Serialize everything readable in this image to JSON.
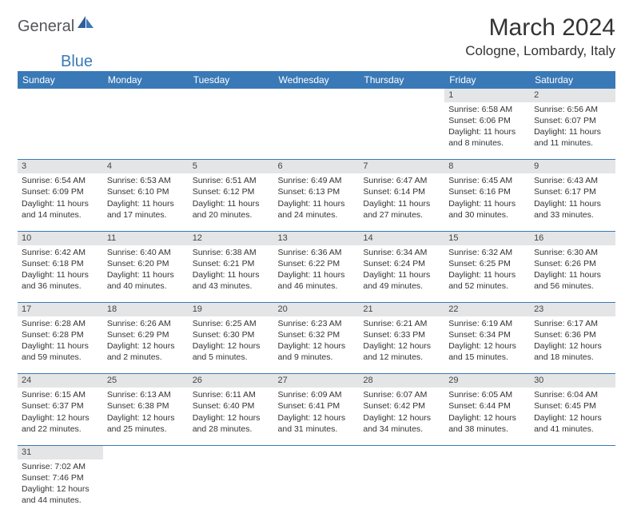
{
  "logo": {
    "general": "General",
    "blue": "Blue"
  },
  "title": "March 2024",
  "location": "Cologne, Lombardy, Italy",
  "colors": {
    "header_bg": "#3a79b7",
    "header_text": "#ffffff",
    "daynum_bg": "#e4e5e6",
    "row_border": "#3a79b7",
    "page_bg": "#ffffff",
    "text": "#333333"
  },
  "weekdays": [
    "Sunday",
    "Monday",
    "Tuesday",
    "Wednesday",
    "Thursday",
    "Friday",
    "Saturday"
  ],
  "weeks": [
    [
      null,
      null,
      null,
      null,
      null,
      {
        "n": "1",
        "sr": "Sunrise: 6:58 AM",
        "ss": "Sunset: 6:06 PM",
        "dl": "Daylight: 11 hours and 8 minutes."
      },
      {
        "n": "2",
        "sr": "Sunrise: 6:56 AM",
        "ss": "Sunset: 6:07 PM",
        "dl": "Daylight: 11 hours and 11 minutes."
      }
    ],
    [
      {
        "n": "3",
        "sr": "Sunrise: 6:54 AM",
        "ss": "Sunset: 6:09 PM",
        "dl": "Daylight: 11 hours and 14 minutes."
      },
      {
        "n": "4",
        "sr": "Sunrise: 6:53 AM",
        "ss": "Sunset: 6:10 PM",
        "dl": "Daylight: 11 hours and 17 minutes."
      },
      {
        "n": "5",
        "sr": "Sunrise: 6:51 AM",
        "ss": "Sunset: 6:12 PM",
        "dl": "Daylight: 11 hours and 20 minutes."
      },
      {
        "n": "6",
        "sr": "Sunrise: 6:49 AM",
        "ss": "Sunset: 6:13 PM",
        "dl": "Daylight: 11 hours and 24 minutes."
      },
      {
        "n": "7",
        "sr": "Sunrise: 6:47 AM",
        "ss": "Sunset: 6:14 PM",
        "dl": "Daylight: 11 hours and 27 minutes."
      },
      {
        "n": "8",
        "sr": "Sunrise: 6:45 AM",
        "ss": "Sunset: 6:16 PM",
        "dl": "Daylight: 11 hours and 30 minutes."
      },
      {
        "n": "9",
        "sr": "Sunrise: 6:43 AM",
        "ss": "Sunset: 6:17 PM",
        "dl": "Daylight: 11 hours and 33 minutes."
      }
    ],
    [
      {
        "n": "10",
        "sr": "Sunrise: 6:42 AM",
        "ss": "Sunset: 6:18 PM",
        "dl": "Daylight: 11 hours and 36 minutes."
      },
      {
        "n": "11",
        "sr": "Sunrise: 6:40 AM",
        "ss": "Sunset: 6:20 PM",
        "dl": "Daylight: 11 hours and 40 minutes."
      },
      {
        "n": "12",
        "sr": "Sunrise: 6:38 AM",
        "ss": "Sunset: 6:21 PM",
        "dl": "Daylight: 11 hours and 43 minutes."
      },
      {
        "n": "13",
        "sr": "Sunrise: 6:36 AM",
        "ss": "Sunset: 6:22 PM",
        "dl": "Daylight: 11 hours and 46 minutes."
      },
      {
        "n": "14",
        "sr": "Sunrise: 6:34 AM",
        "ss": "Sunset: 6:24 PM",
        "dl": "Daylight: 11 hours and 49 minutes."
      },
      {
        "n": "15",
        "sr": "Sunrise: 6:32 AM",
        "ss": "Sunset: 6:25 PM",
        "dl": "Daylight: 11 hours and 52 minutes."
      },
      {
        "n": "16",
        "sr": "Sunrise: 6:30 AM",
        "ss": "Sunset: 6:26 PM",
        "dl": "Daylight: 11 hours and 56 minutes."
      }
    ],
    [
      {
        "n": "17",
        "sr": "Sunrise: 6:28 AM",
        "ss": "Sunset: 6:28 PM",
        "dl": "Daylight: 11 hours and 59 minutes."
      },
      {
        "n": "18",
        "sr": "Sunrise: 6:26 AM",
        "ss": "Sunset: 6:29 PM",
        "dl": "Daylight: 12 hours and 2 minutes."
      },
      {
        "n": "19",
        "sr": "Sunrise: 6:25 AM",
        "ss": "Sunset: 6:30 PM",
        "dl": "Daylight: 12 hours and 5 minutes."
      },
      {
        "n": "20",
        "sr": "Sunrise: 6:23 AM",
        "ss": "Sunset: 6:32 PM",
        "dl": "Daylight: 12 hours and 9 minutes."
      },
      {
        "n": "21",
        "sr": "Sunrise: 6:21 AM",
        "ss": "Sunset: 6:33 PM",
        "dl": "Daylight: 12 hours and 12 minutes."
      },
      {
        "n": "22",
        "sr": "Sunrise: 6:19 AM",
        "ss": "Sunset: 6:34 PM",
        "dl": "Daylight: 12 hours and 15 minutes."
      },
      {
        "n": "23",
        "sr": "Sunrise: 6:17 AM",
        "ss": "Sunset: 6:36 PM",
        "dl": "Daylight: 12 hours and 18 minutes."
      }
    ],
    [
      {
        "n": "24",
        "sr": "Sunrise: 6:15 AM",
        "ss": "Sunset: 6:37 PM",
        "dl": "Daylight: 12 hours and 22 minutes."
      },
      {
        "n": "25",
        "sr": "Sunrise: 6:13 AM",
        "ss": "Sunset: 6:38 PM",
        "dl": "Daylight: 12 hours and 25 minutes."
      },
      {
        "n": "26",
        "sr": "Sunrise: 6:11 AM",
        "ss": "Sunset: 6:40 PM",
        "dl": "Daylight: 12 hours and 28 minutes."
      },
      {
        "n": "27",
        "sr": "Sunrise: 6:09 AM",
        "ss": "Sunset: 6:41 PM",
        "dl": "Daylight: 12 hours and 31 minutes."
      },
      {
        "n": "28",
        "sr": "Sunrise: 6:07 AM",
        "ss": "Sunset: 6:42 PM",
        "dl": "Daylight: 12 hours and 34 minutes."
      },
      {
        "n": "29",
        "sr": "Sunrise: 6:05 AM",
        "ss": "Sunset: 6:44 PM",
        "dl": "Daylight: 12 hours and 38 minutes."
      },
      {
        "n": "30",
        "sr": "Sunrise: 6:04 AM",
        "ss": "Sunset: 6:45 PM",
        "dl": "Daylight: 12 hours and 41 minutes."
      }
    ],
    [
      {
        "n": "31",
        "sr": "Sunrise: 7:02 AM",
        "ss": "Sunset: 7:46 PM",
        "dl": "Daylight: 12 hours and 44 minutes."
      },
      null,
      null,
      null,
      null,
      null,
      null
    ]
  ]
}
